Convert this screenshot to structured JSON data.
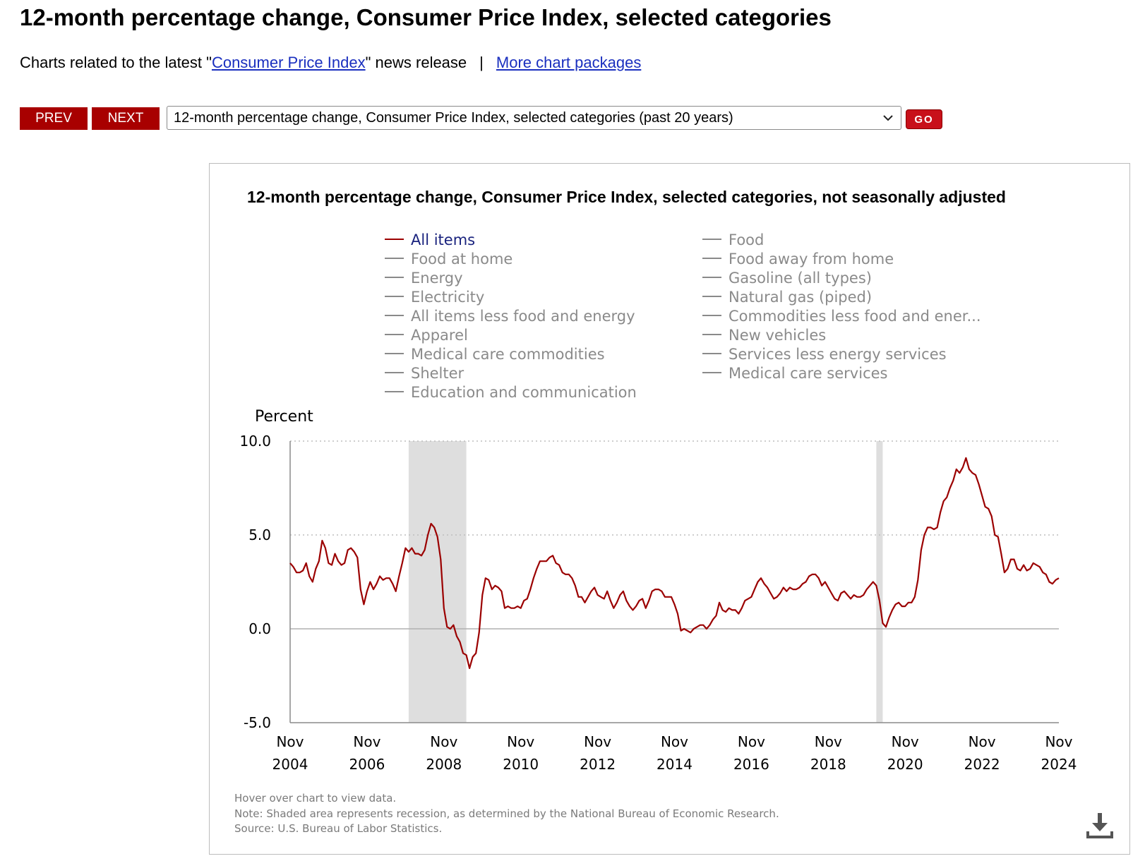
{
  "header": {
    "title": "12-month percentage change, Consumer Price Index, selected categories",
    "related_prefix": "Charts related to the latest \"",
    "related_link": "Consumer Price Index",
    "related_suffix": "\" news release",
    "separator": "|",
    "more_link": "More chart packages"
  },
  "controls": {
    "prev_label": "PREV",
    "next_label": "NEXT",
    "selected_chart": "12-month percentage change, Consumer Price Index, selected categories (past 20 years)",
    "go_label": "GO"
  },
  "footer": {
    "hover_note": "Hover over chart to view data.",
    "recession_note": "Note: Shaded area represents recession, as determined by the National Bureau of Economic Research.",
    "source": "Source: U.S. Bureau of Labor Statistics."
  },
  "icons": {
    "dropdown": "chevron-down-icon",
    "download": "download-icon"
  },
  "colors": {
    "accent": "#a80000",
    "series": "#9b0000",
    "legend_inactive": "#8a8a8a",
    "legend_active": "#1a237e",
    "recession": "#dedede"
  },
  "chart_data": {
    "type": "line",
    "title": "12-month percentage change, Consumer Price Index, selected categories, not seasonally adjusted",
    "ylabel": "Percent",
    "ylim": [
      -5,
      10
    ],
    "yticks": [
      {
        "value": -5,
        "label": "-5.0"
      },
      {
        "value": 0,
        "label": "0.0"
      },
      {
        "value": 5,
        "label": "5.0"
      },
      {
        "value": 10,
        "label": "10.0"
      }
    ],
    "xlim": [
      "2004-11",
      "2024-11"
    ],
    "xticks": [
      {
        "date": "2004-11",
        "month": "Nov",
        "year": "2004"
      },
      {
        "date": "2006-11",
        "month": "Nov",
        "year": "2006"
      },
      {
        "date": "2008-11",
        "month": "Nov",
        "year": "2008"
      },
      {
        "date": "2010-11",
        "month": "Nov",
        "year": "2010"
      },
      {
        "date": "2012-11",
        "month": "Nov",
        "year": "2012"
      },
      {
        "date": "2014-11",
        "month": "Nov",
        "year": "2014"
      },
      {
        "date": "2016-11",
        "month": "Nov",
        "year": "2016"
      },
      {
        "date": "2018-11",
        "month": "Nov",
        "year": "2018"
      },
      {
        "date": "2020-11",
        "month": "Nov",
        "year": "2020"
      },
      {
        "date": "2022-11",
        "month": "Nov",
        "year": "2022"
      },
      {
        "date": "2024-11",
        "month": "Nov",
        "year": "2024"
      }
    ],
    "gridlines": "horizontal dotted",
    "recessions": [
      {
        "start": "2007-12",
        "end": "2009-06"
      },
      {
        "start": "2020-02",
        "end": "2020-04"
      }
    ],
    "legend": {
      "placement": "top",
      "columns": [
        [
          "All items",
          "Food at home",
          "Energy",
          "Electricity",
          "All items less food and energy",
          "Apparel",
          "Medical care commodities",
          "Shelter",
          "Education and communication"
        ],
        [
          "Food",
          "Food away from home",
          "Gasoline (all types)",
          "Natural gas (piped)",
          "Commodities less food and ener...",
          "New vehicles",
          "Services less energy services",
          "Medical care services"
        ]
      ],
      "active": "All items"
    },
    "series": [
      {
        "name": "All items",
        "points": [
          [
            "2004-11",
            3.5
          ],
          [
            "2004-12",
            3.3
          ],
          [
            "2005-01",
            3.0
          ],
          [
            "2005-02",
            3.0
          ],
          [
            "2005-03",
            3.1
          ],
          [
            "2005-04",
            3.5
          ],
          [
            "2005-05",
            2.8
          ],
          [
            "2005-06",
            2.5
          ],
          [
            "2005-07",
            3.2
          ],
          [
            "2005-08",
            3.6
          ],
          [
            "2005-09",
            4.7
          ],
          [
            "2005-10",
            4.3
          ],
          [
            "2005-11",
            3.5
          ],
          [
            "2005-12",
            3.4
          ],
          [
            "2006-01",
            4.0
          ],
          [
            "2006-02",
            3.6
          ],
          [
            "2006-03",
            3.4
          ],
          [
            "2006-04",
            3.5
          ],
          [
            "2006-05",
            4.2
          ],
          [
            "2006-06",
            4.3
          ],
          [
            "2006-07",
            4.1
          ],
          [
            "2006-08",
            3.8
          ],
          [
            "2006-09",
            2.1
          ],
          [
            "2006-10",
            1.3
          ],
          [
            "2006-11",
            2.0
          ],
          [
            "2006-12",
            2.5
          ],
          [
            "2007-01",
            2.1
          ],
          [
            "2007-02",
            2.4
          ],
          [
            "2007-03",
            2.8
          ],
          [
            "2007-04",
            2.6
          ],
          [
            "2007-05",
            2.7
          ],
          [
            "2007-06",
            2.7
          ],
          [
            "2007-07",
            2.4
          ],
          [
            "2007-08",
            2.0
          ],
          [
            "2007-09",
            2.8
          ],
          [
            "2007-10",
            3.5
          ],
          [
            "2007-11",
            4.3
          ],
          [
            "2007-12",
            4.1
          ],
          [
            "2008-01",
            4.3
          ],
          [
            "2008-02",
            4.0
          ],
          [
            "2008-03",
            4.0
          ],
          [
            "2008-04",
            3.9
          ],
          [
            "2008-05",
            4.2
          ],
          [
            "2008-06",
            5.0
          ],
          [
            "2008-07",
            5.6
          ],
          [
            "2008-08",
            5.4
          ],
          [
            "2008-09",
            4.9
          ],
          [
            "2008-10",
            3.7
          ],
          [
            "2008-11",
            1.1
          ],
          [
            "2008-12",
            0.1
          ],
          [
            "2009-01",
            0.0
          ],
          [
            "2009-02",
            0.2
          ],
          [
            "2009-03",
            -0.4
          ],
          [
            "2009-04",
            -0.7
          ],
          [
            "2009-05",
            -1.3
          ],
          [
            "2009-06",
            -1.4
          ],
          [
            "2009-07",
            -2.1
          ],
          [
            "2009-08",
            -1.5
          ],
          [
            "2009-09",
            -1.3
          ],
          [
            "2009-10",
            -0.2
          ],
          [
            "2009-11",
            1.8
          ],
          [
            "2009-12",
            2.7
          ],
          [
            "2010-01",
            2.6
          ],
          [
            "2010-02",
            2.1
          ],
          [
            "2010-03",
            2.3
          ],
          [
            "2010-04",
            2.2
          ],
          [
            "2010-05",
            2.0
          ],
          [
            "2010-06",
            1.1
          ],
          [
            "2010-07",
            1.2
          ],
          [
            "2010-08",
            1.1
          ],
          [
            "2010-09",
            1.1
          ],
          [
            "2010-10",
            1.2
          ],
          [
            "2010-11",
            1.1
          ],
          [
            "2010-12",
            1.5
          ],
          [
            "2011-01",
            1.6
          ],
          [
            "2011-02",
            2.1
          ],
          [
            "2011-03",
            2.7
          ],
          [
            "2011-04",
            3.2
          ],
          [
            "2011-05",
            3.6
          ],
          [
            "2011-06",
            3.6
          ],
          [
            "2011-07",
            3.6
          ],
          [
            "2011-08",
            3.8
          ],
          [
            "2011-09",
            3.9
          ],
          [
            "2011-10",
            3.5
          ],
          [
            "2011-11",
            3.4
          ],
          [
            "2011-12",
            3.0
          ],
          [
            "2012-01",
            2.9
          ],
          [
            "2012-02",
            2.9
          ],
          [
            "2012-03",
            2.7
          ],
          [
            "2012-04",
            2.3
          ],
          [
            "2012-05",
            1.7
          ],
          [
            "2012-06",
            1.7
          ],
          [
            "2012-07",
            1.4
          ],
          [
            "2012-08",
            1.7
          ],
          [
            "2012-09",
            2.0
          ],
          [
            "2012-10",
            2.2
          ],
          [
            "2012-11",
            1.8
          ],
          [
            "2012-12",
            1.7
          ],
          [
            "2013-01",
            1.6
          ],
          [
            "2013-02",
            2.0
          ],
          [
            "2013-03",
            1.5
          ],
          [
            "2013-04",
            1.1
          ],
          [
            "2013-05",
            1.4
          ],
          [
            "2013-06",
            1.8
          ],
          [
            "2013-07",
            2.0
          ],
          [
            "2013-08",
            1.5
          ],
          [
            "2013-09",
            1.2
          ],
          [
            "2013-10",
            1.0
          ],
          [
            "2013-11",
            1.2
          ],
          [
            "2013-12",
            1.5
          ],
          [
            "2014-01",
            1.6
          ],
          [
            "2014-02",
            1.1
          ],
          [
            "2014-03",
            1.5
          ],
          [
            "2014-04",
            2.0
          ],
          [
            "2014-05",
            2.1
          ],
          [
            "2014-06",
            2.1
          ],
          [
            "2014-07",
            2.0
          ],
          [
            "2014-08",
            1.7
          ],
          [
            "2014-09",
            1.7
          ],
          [
            "2014-10",
            1.7
          ],
          [
            "2014-11",
            1.3
          ],
          [
            "2014-12",
            0.8
          ],
          [
            "2015-01",
            -0.1
          ],
          [
            "2015-02",
            0.0
          ],
          [
            "2015-03",
            -0.1
          ],
          [
            "2015-04",
            -0.2
          ],
          [
            "2015-05",
            0.0
          ],
          [
            "2015-06",
            0.1
          ],
          [
            "2015-07",
            0.2
          ],
          [
            "2015-08",
            0.2
          ],
          [
            "2015-09",
            0.0
          ],
          [
            "2015-10",
            0.2
          ],
          [
            "2015-11",
            0.5
          ],
          [
            "2015-12",
            0.7
          ],
          [
            "2016-01",
            1.4
          ],
          [
            "2016-02",
            1.0
          ],
          [
            "2016-03",
            0.9
          ],
          [
            "2016-04",
            1.1
          ],
          [
            "2016-05",
            1.0
          ],
          [
            "2016-06",
            1.0
          ],
          [
            "2016-07",
            0.8
          ],
          [
            "2016-08",
            1.1
          ],
          [
            "2016-09",
            1.5
          ],
          [
            "2016-10",
            1.6
          ],
          [
            "2016-11",
            1.7
          ],
          [
            "2016-12",
            2.1
          ],
          [
            "2017-01",
            2.5
          ],
          [
            "2017-02",
            2.7
          ],
          [
            "2017-03",
            2.4
          ],
          [
            "2017-04",
            2.2
          ],
          [
            "2017-05",
            1.9
          ],
          [
            "2017-06",
            1.6
          ],
          [
            "2017-07",
            1.7
          ],
          [
            "2017-08",
            1.9
          ],
          [
            "2017-09",
            2.2
          ],
          [
            "2017-10",
            2.0
          ],
          [
            "2017-11",
            2.2
          ],
          [
            "2017-12",
            2.1
          ],
          [
            "2018-01",
            2.1
          ],
          [
            "2018-02",
            2.2
          ],
          [
            "2018-03",
            2.4
          ],
          [
            "2018-04",
            2.5
          ],
          [
            "2018-05",
            2.8
          ],
          [
            "2018-06",
            2.9
          ],
          [
            "2018-07",
            2.9
          ],
          [
            "2018-08",
            2.7
          ],
          [
            "2018-09",
            2.3
          ],
          [
            "2018-10",
            2.5
          ],
          [
            "2018-11",
            2.2
          ],
          [
            "2018-12",
            1.9
          ],
          [
            "2019-01",
            1.6
          ],
          [
            "2019-02",
            1.5
          ],
          [
            "2019-03",
            1.9
          ],
          [
            "2019-04",
            2.0
          ],
          [
            "2019-05",
            1.8
          ],
          [
            "2019-06",
            1.6
          ],
          [
            "2019-07",
            1.8
          ],
          [
            "2019-08",
            1.7
          ],
          [
            "2019-09",
            1.7
          ],
          [
            "2019-10",
            1.8
          ],
          [
            "2019-11",
            2.1
          ],
          [
            "2019-12",
            2.3
          ],
          [
            "2020-01",
            2.5
          ],
          [
            "2020-02",
            2.3
          ],
          [
            "2020-03",
            1.5
          ],
          [
            "2020-04",
            0.3
          ],
          [
            "2020-05",
            0.1
          ],
          [
            "2020-06",
            0.6
          ],
          [
            "2020-07",
            1.0
          ],
          [
            "2020-08",
            1.3
          ],
          [
            "2020-09",
            1.4
          ],
          [
            "2020-10",
            1.2
          ],
          [
            "2020-11",
            1.2
          ],
          [
            "2020-12",
            1.4
          ],
          [
            "2021-01",
            1.4
          ],
          [
            "2021-02",
            1.7
          ],
          [
            "2021-03",
            2.6
          ],
          [
            "2021-04",
            4.2
          ],
          [
            "2021-05",
            5.0
          ],
          [
            "2021-06",
            5.4
          ],
          [
            "2021-07",
            5.4
          ],
          [
            "2021-08",
            5.3
          ],
          [
            "2021-09",
            5.4
          ],
          [
            "2021-10",
            6.2
          ],
          [
            "2021-11",
            6.8
          ],
          [
            "2021-12",
            7.0
          ],
          [
            "2022-01",
            7.5
          ],
          [
            "2022-02",
            7.9
          ],
          [
            "2022-03",
            8.5
          ],
          [
            "2022-04",
            8.3
          ],
          [
            "2022-05",
            8.6
          ],
          [
            "2022-06",
            9.1
          ],
          [
            "2022-07",
            8.5
          ],
          [
            "2022-08",
            8.3
          ],
          [
            "2022-09",
            8.2
          ],
          [
            "2022-10",
            7.7
          ],
          [
            "2022-11",
            7.1
          ],
          [
            "2022-12",
            6.5
          ],
          [
            "2023-01",
            6.4
          ],
          [
            "2023-02",
            6.0
          ],
          [
            "2023-03",
            5.0
          ],
          [
            "2023-04",
            4.9
          ],
          [
            "2023-05",
            4.0
          ],
          [
            "2023-06",
            3.0
          ],
          [
            "2023-07",
            3.2
          ],
          [
            "2023-08",
            3.7
          ],
          [
            "2023-09",
            3.7
          ],
          [
            "2023-10",
            3.2
          ],
          [
            "2023-11",
            3.1
          ],
          [
            "2023-12",
            3.4
          ],
          [
            "2024-01",
            3.1
          ],
          [
            "2024-02",
            3.2
          ],
          [
            "2024-03",
            3.5
          ],
          [
            "2024-04",
            3.4
          ],
          [
            "2024-05",
            3.3
          ],
          [
            "2024-06",
            3.0
          ],
          [
            "2024-07",
            2.9
          ],
          [
            "2024-08",
            2.5
          ],
          [
            "2024-09",
            2.4
          ],
          [
            "2024-10",
            2.6
          ],
          [
            "2024-11",
            2.7
          ]
        ]
      }
    ]
  }
}
